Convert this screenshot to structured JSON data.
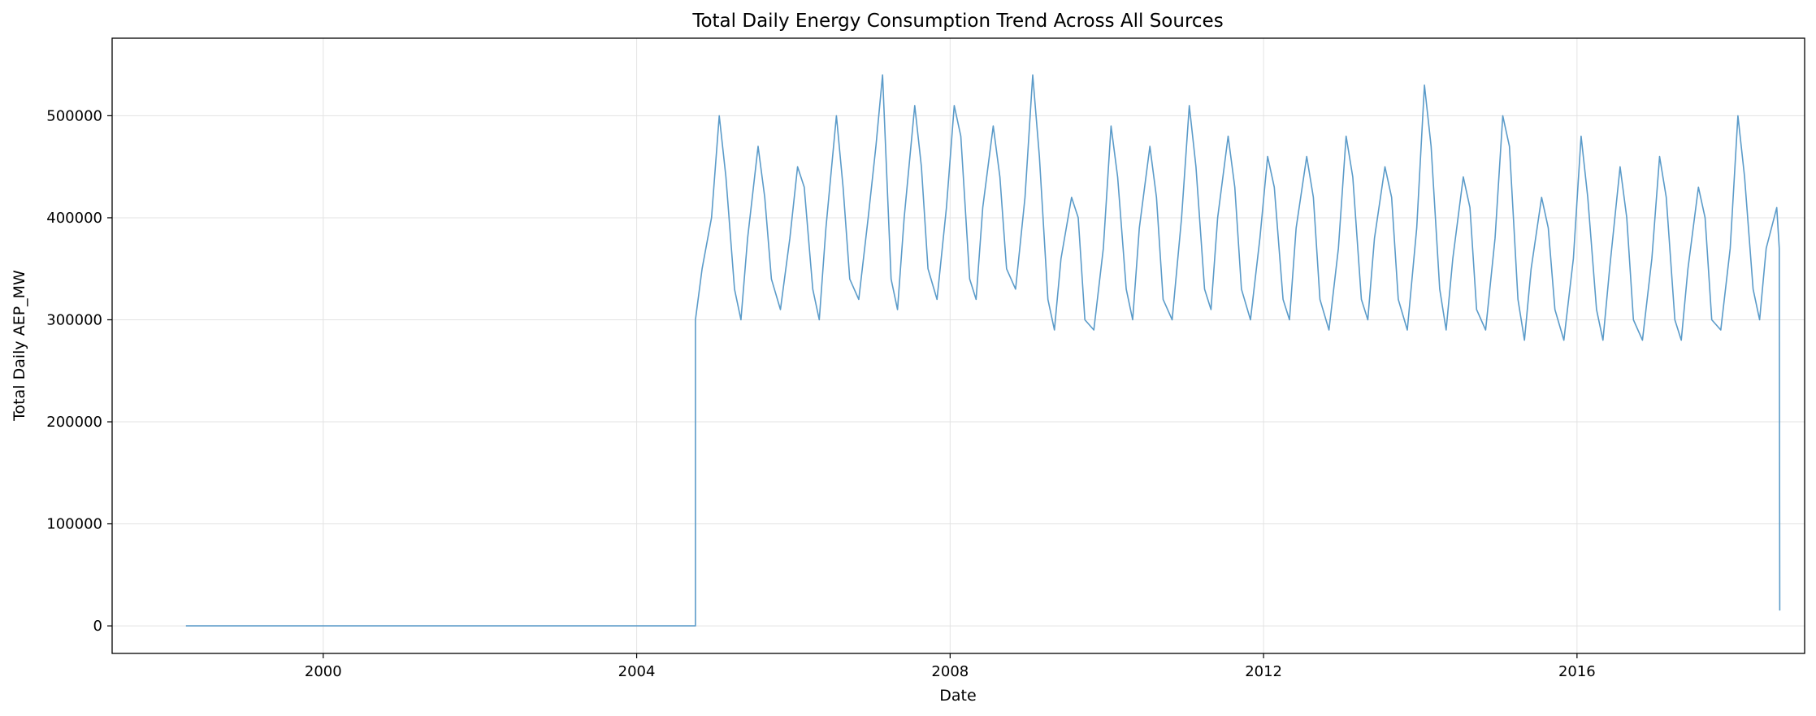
{
  "chart_data": {
    "type": "line",
    "title": "Total Daily Energy Consumption Trend Across All Sources",
    "xlabel": "Date",
    "ylabel": "Total Daily AEP_MW",
    "xlim": [
      "1997-04-22",
      "2018-11-27"
    ],
    "ylim": [
      -27000,
      576000
    ],
    "x_ticks": [
      "2000",
      "2004",
      "2008",
      "2012",
      "2016"
    ],
    "y_ticks": [
      0,
      100000,
      200000,
      300000,
      400000,
      500000
    ],
    "y_tick_labels": [
      "0",
      "100000",
      "200000",
      "300000",
      "400000",
      "500000"
    ],
    "grid": true,
    "legend": "none",
    "colors": {
      "line": "#5b9bc9",
      "grid": "#e3e3e3"
    },
    "series": [
      {
        "x": [
          "1998-04-01",
          "2004-10-01",
          "2004-10-01",
          "2004-11-01",
          "2004-12-15",
          "2005-01-20",
          "2005-02-20",
          "2005-04-01",
          "2005-05-01",
          "2005-06-01",
          "2005-07-20",
          "2005-08-20",
          "2005-09-20",
          "2005-11-01",
          "2005-12-15",
          "2006-01-20",
          "2006-02-20",
          "2006-04-01",
          "2006-05-01",
          "2006-06-01",
          "2006-07-20",
          "2006-08-20",
          "2006-09-20",
          "2006-11-01",
          "2006-12-15",
          "2007-01-20",
          "2007-02-20",
          "2007-04-01",
          "2007-05-01",
          "2007-06-01",
          "2007-07-20",
          "2007-08-20",
          "2007-09-20",
          "2007-11-01",
          "2007-12-15",
          "2008-01-20",
          "2008-02-20",
          "2008-04-01",
          "2008-05-01",
          "2008-06-01",
          "2008-07-20",
          "2008-08-20",
          "2008-09-20",
          "2008-11-01",
          "2008-12-15",
          "2009-01-20",
          "2009-02-20",
          "2009-04-01",
          "2009-05-01",
          "2009-06-01",
          "2009-07-20",
          "2009-08-20",
          "2009-09-20",
          "2009-11-01",
          "2009-12-15",
          "2010-01-20",
          "2010-02-20",
          "2010-04-01",
          "2010-05-01",
          "2010-06-01",
          "2010-07-20",
          "2010-08-20",
          "2010-09-20",
          "2010-11-01",
          "2010-12-15",
          "2011-01-20",
          "2011-02-20",
          "2011-04-01",
          "2011-05-01",
          "2011-06-01",
          "2011-07-20",
          "2011-08-20",
          "2011-09-20",
          "2011-11-01",
          "2011-12-15",
          "2012-01-20",
          "2012-02-20",
          "2012-04-01",
          "2012-05-01",
          "2012-06-01",
          "2012-07-20",
          "2012-08-20",
          "2012-09-20",
          "2012-11-01",
          "2012-12-15",
          "2013-01-20",
          "2013-02-20",
          "2013-04-01",
          "2013-05-01",
          "2013-06-01",
          "2013-07-20",
          "2013-08-20",
          "2013-09-20",
          "2013-11-01",
          "2013-12-15",
          "2014-01-20",
          "2014-02-20",
          "2014-04-01",
          "2014-05-01",
          "2014-06-01",
          "2014-07-20",
          "2014-08-20",
          "2014-09-20",
          "2014-11-01",
          "2014-12-15",
          "2015-01-20",
          "2015-02-20",
          "2015-04-01",
          "2015-05-01",
          "2015-06-01",
          "2015-07-20",
          "2015-08-20",
          "2015-09-20",
          "2015-11-01",
          "2015-12-15",
          "2016-01-20",
          "2016-02-20",
          "2016-04-01",
          "2016-05-01",
          "2016-06-01",
          "2016-07-20",
          "2016-08-20",
          "2016-09-20",
          "2016-11-01",
          "2016-12-15",
          "2017-01-20",
          "2017-02-20",
          "2017-04-01",
          "2017-05-01",
          "2017-06-01",
          "2017-07-20",
          "2017-08-20",
          "2017-09-20",
          "2017-11-01",
          "2017-12-15",
          "2018-01-20",
          "2018-02-20",
          "2018-04-01",
          "2018-05-01",
          "2018-06-01",
          "2018-07-20",
          "2018-08-01",
          "2018-08-03"
        ],
        "y": [
          0,
          0,
          300000,
          350000,
          400000,
          500000,
          440000,
          330000,
          300000,
          380000,
          470000,
          420000,
          340000,
          310000,
          380000,
          450000,
          430000,
          330000,
          300000,
          390000,
          500000,
          430000,
          340000,
          320000,
          400000,
          470000,
          540000,
          340000,
          310000,
          400000,
          510000,
          450000,
          350000,
          320000,
          410000,
          510000,
          480000,
          340000,
          320000,
          410000,
          490000,
          440000,
          350000,
          330000,
          420000,
          540000,
          460000,
          320000,
          290000,
          360000,
          420000,
          400000,
          300000,
          290000,
          370000,
          490000,
          440000,
          330000,
          300000,
          390000,
          470000,
          420000,
          320000,
          300000,
          400000,
          510000,
          450000,
          330000,
          310000,
          400000,
          480000,
          430000,
          330000,
          300000,
          380000,
          460000,
          430000,
          320000,
          300000,
          390000,
          460000,
          420000,
          320000,
          290000,
          370000,
          480000,
          440000,
          320000,
          300000,
          380000,
          450000,
          420000,
          320000,
          290000,
          390000,
          530000,
          470000,
          330000,
          290000,
          360000,
          440000,
          410000,
          310000,
          290000,
          380000,
          500000,
          470000,
          320000,
          280000,
          350000,
          420000,
          390000,
          310000,
          280000,
          360000,
          480000,
          420000,
          310000,
          280000,
          350000,
          450000,
          400000,
          300000,
          280000,
          360000,
          460000,
          420000,
          300000,
          280000,
          350000,
          430000,
          400000,
          300000,
          290000,
          370000,
          500000,
          440000,
          330000,
          300000,
          370000,
          410000,
          370000,
          15000
        ]
      }
    ]
  }
}
